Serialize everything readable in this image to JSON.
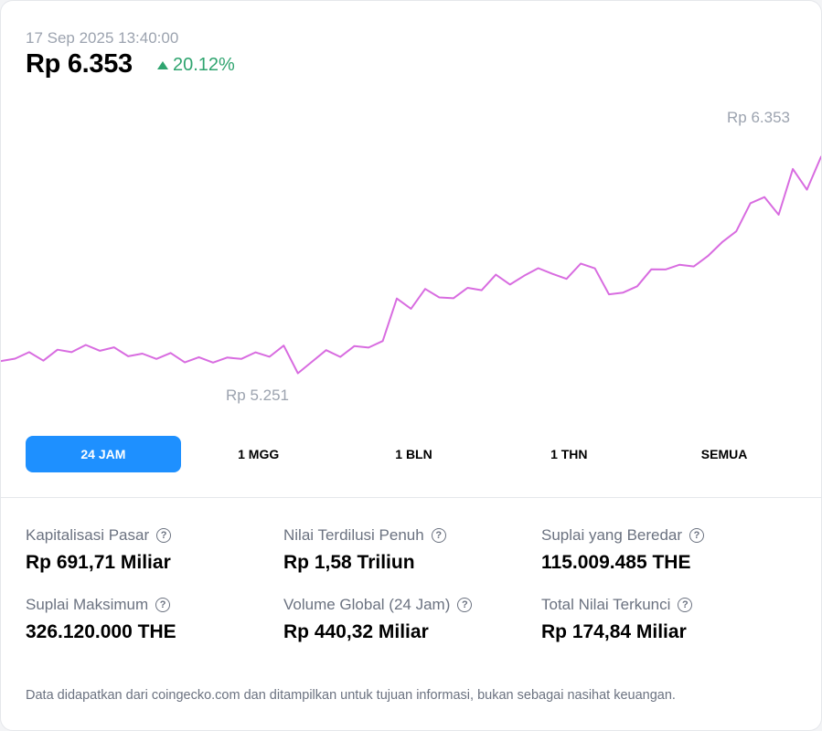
{
  "header": {
    "timestamp": "17 Sep 2025 13:40:00",
    "price": "Rp 6.353",
    "change": "20.12%",
    "change_direction": "up"
  },
  "colors": {
    "line": "#d86ce0",
    "up": "#2fa46f",
    "tab_active": "#1e90ff"
  },
  "chart_data": {
    "type": "line",
    "period": "24 JAM",
    "high_label": "Rp 6.353",
    "low_label": "Rp 5.251",
    "y": [
      5309,
      5320,
      5350,
      5311,
      5361,
      5350,
      5383,
      5356,
      5372,
      5331,
      5343,
      5319,
      5346,
      5303,
      5327,
      5302,
      5325,
      5319,
      5349,
      5329,
      5380,
      5253,
      5306,
      5359,
      5328,
      5378,
      5371,
      5401,
      5596,
      5549,
      5640,
      5601,
      5597,
      5645,
      5634,
      5705,
      5660,
      5700,
      5735,
      5709,
      5686,
      5756,
      5734,
      5615,
      5623,
      5652,
      5730,
      5729,
      5751,
      5743,
      5791,
      5854,
      5904,
      6033,
      6061,
      5980,
      6190,
      6095,
      6246
    ]
  },
  "tabs": [
    {
      "label": "24 JAM",
      "active": true
    },
    {
      "label": "1 MGG",
      "active": false
    },
    {
      "label": "1 BLN",
      "active": false
    },
    {
      "label": "1 THN",
      "active": false
    },
    {
      "label": "SEMUA",
      "active": false
    }
  ],
  "stats": [
    {
      "label": "Kapitalisasi Pasar",
      "value": "Rp 691,71 Miliar"
    },
    {
      "label": "Nilai Terdilusi Penuh",
      "value": "Rp 1,58 Triliun"
    },
    {
      "label": "Suplai yang Beredar",
      "value": "115.009.485 THE"
    },
    {
      "label": "Suplai Maksimum",
      "value": "326.120.000 THE"
    },
    {
      "label": "Volume Global (24 Jam)",
      "value": "Rp 440,32 Miliar"
    },
    {
      "label": "Total Nilai Terkunci",
      "value": "Rp 174,84 Miliar"
    }
  ],
  "help_icon": "question-circle",
  "footer": "Data didapatkan dari coingecko.com dan ditampilkan untuk tujuan informasi, bukan sebagai nasihat keuangan."
}
